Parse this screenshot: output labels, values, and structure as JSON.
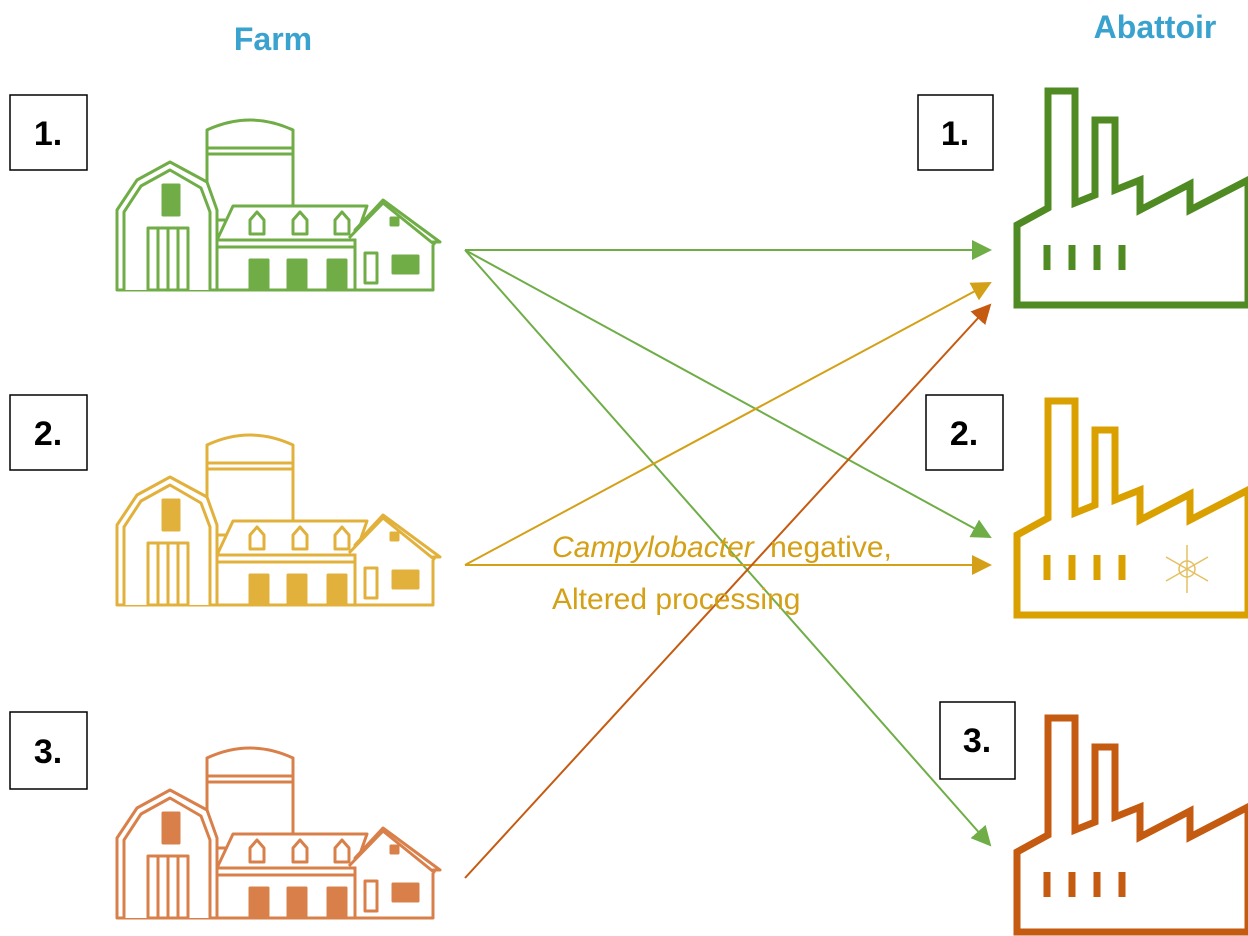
{
  "header": {
    "farm_title": "Farm",
    "abattoir_title": "Abattoir"
  },
  "farms": [
    {
      "label": "1."
    },
    {
      "label": "2."
    },
    {
      "label": "3."
    }
  ],
  "abattoirs": [
    {
      "label": "1."
    },
    {
      "label": "2."
    },
    {
      "label": "3."
    }
  ],
  "annotation": {
    "italic": "Campylobacter",
    "text": "negative,",
    "line2": "Altered processing"
  }
}
